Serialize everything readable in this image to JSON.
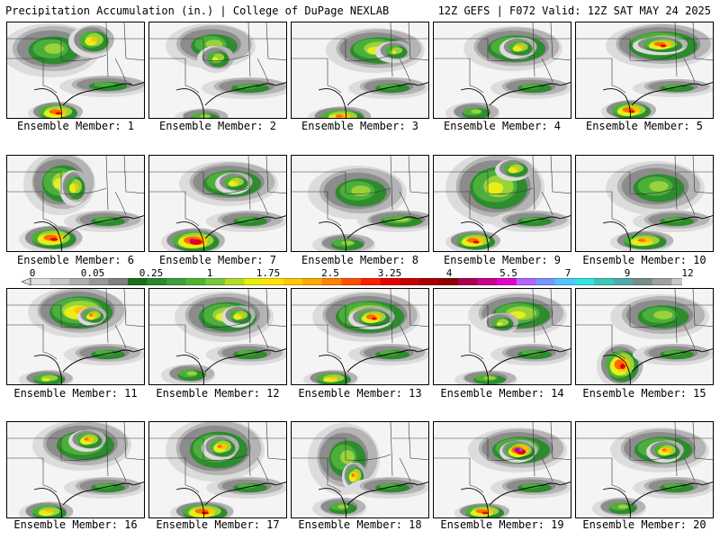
{
  "header": {
    "left": "Precipitation Accumulation (in.) | College of DuPage NEXLAB",
    "right": "12Z GEFS | F072 Valid: 12Z SAT MAY 24 2025"
  },
  "color_scale": {
    "labels": [
      "0",
      "0.05",
      "0.25",
      "1",
      "1.75",
      "2.5",
      "3.25",
      "4",
      "5.5",
      "7",
      "9",
      "12"
    ],
    "colors": [
      "#e0e0e0",
      "#c8c8c8",
      "#b0b0b0",
      "#989898",
      "#808080",
      "#1a6e1a",
      "#2a8a2a",
      "#3ca03c",
      "#50b432",
      "#78c83c",
      "#b4dc28",
      "#e6f000",
      "#ffe600",
      "#ffc800",
      "#ffaa00",
      "#ff8200",
      "#ff5000",
      "#ff1e00",
      "#e60000",
      "#c80000",
      "#aa0000",
      "#8c0000",
      "#aa0050",
      "#c8008c",
      "#e600c8",
      "#b464ff",
      "#7896ff",
      "#50c8ff",
      "#32e6e6",
      "#3cc8b4",
      "#50aaaa",
      "#788c8c",
      "#a0a0a0",
      "#c8c8c8"
    ]
  },
  "panels": [
    {
      "label": "Ensemble Member: 1"
    },
    {
      "label": "Ensemble Member: 2"
    },
    {
      "label": "Ensemble Member: 3"
    },
    {
      "label": "Ensemble Member: 4"
    },
    {
      "label": "Ensemble Member: 5"
    },
    {
      "label": "Ensemble Member: 6"
    },
    {
      "label": "Ensemble Member: 7"
    },
    {
      "label": "Ensemble Member: 8"
    },
    {
      "label": "Ensemble Member: 9"
    },
    {
      "label": "Ensemble Member: 10"
    },
    {
      "label": "Ensemble Member: 11"
    },
    {
      "label": "Ensemble Member: 12"
    },
    {
      "label": "Ensemble Member: 13"
    },
    {
      "label": "Ensemble Member: 14"
    },
    {
      "label": "Ensemble Member: 15"
    },
    {
      "label": "Ensemble Member: 16"
    },
    {
      "label": "Ensemble Member: 17"
    },
    {
      "label": "Ensemble Member: 18"
    },
    {
      "label": "Ensemble Member: 19"
    },
    {
      "label": "Ensemble Member: 20"
    }
  ]
}
